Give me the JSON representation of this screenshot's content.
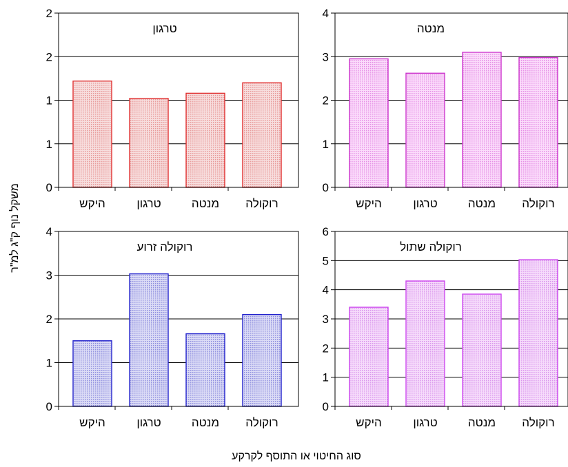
{
  "chart_data": [
    {
      "type": "bar",
      "title": "טרגון",
      "categories": [
        "היקש",
        "טרגון",
        "מנטה",
        "רוקולה"
      ],
      "values": [
        1.22,
        1.02,
        1.08,
        1.2
      ],
      "ylim": [
        0,
        2
      ],
      "yticks": [
        "0",
        "1",
        "1",
        "2",
        "2"
      ],
      "ytick_values": [
        0,
        0.5,
        1,
        1.5,
        2
      ],
      "color": "#e03030",
      "fill": "#f2c6c6",
      "grid": true
    },
    {
      "type": "bar",
      "title": "מנטה",
      "categories": [
        "היקש",
        "טרגון",
        "מנטה",
        "רוקולה"
      ],
      "values": [
        2.95,
        2.62,
        3.1,
        2.98
      ],
      "ylim": [
        0,
        4
      ],
      "yticks": [
        "0",
        "1",
        "2",
        "3",
        "4"
      ],
      "ytick_values": [
        0,
        1,
        2,
        3,
        4
      ],
      "color": "#cc33cc",
      "fill": "#f4bff4",
      "grid": true
    },
    {
      "type": "bar",
      "title": "רוקולה זרוע",
      "categories": [
        "היקש",
        "טרגון",
        "מנטה",
        "רוקולה"
      ],
      "values": [
        1.5,
        3.03,
        1.66,
        2.1
      ],
      "ylim": [
        0,
        4
      ],
      "yticks": [
        "0",
        "1",
        "2",
        "3",
        "4"
      ],
      "ytick_values": [
        0,
        1,
        2,
        3,
        4
      ],
      "color": "#2222cc",
      "fill": "#c6c6ef",
      "grid": true
    },
    {
      "type": "bar",
      "title": "רוקולה שתול",
      "categories": [
        "היקש",
        "טרגון",
        "מנטה",
        "רוקולה"
      ],
      "values": [
        3.4,
        4.3,
        3.85,
        5.03
      ],
      "ylim": [
        0,
        6
      ],
      "yticks": [
        "0",
        "1",
        "2",
        "3",
        "4",
        "5",
        "6"
      ],
      "ytick_values": [
        0,
        1,
        2,
        3,
        4,
        5,
        6
      ],
      "color": "#cc44ee",
      "fill": "#efc6f7",
      "grid": true
    }
  ],
  "figure": {
    "ylabel": "משקל נוף ק\"ג למ\"ר",
    "xlabel": "סוג החיטוי או התוסף לקרקע"
  }
}
